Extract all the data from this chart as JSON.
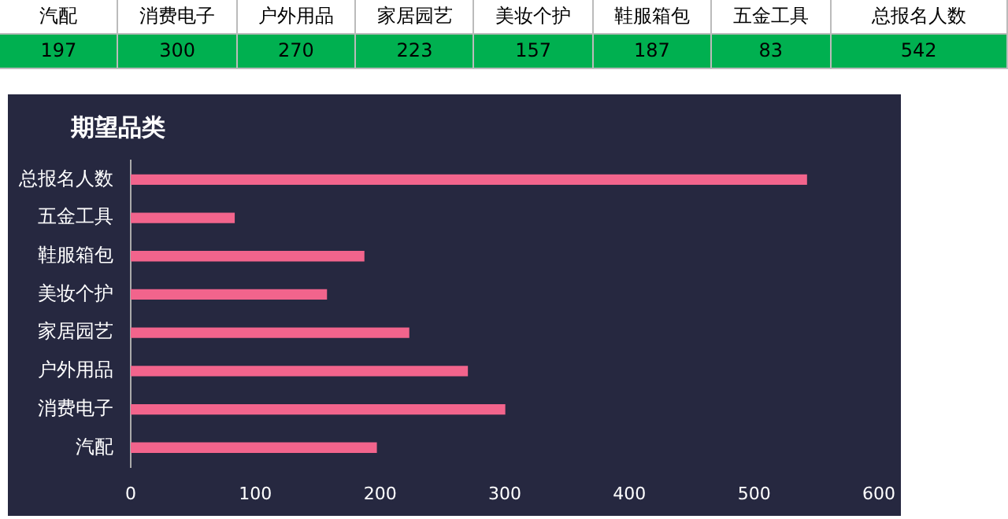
{
  "chart_data": [
    {
      "type": "other",
      "categories": [
        "汽配",
        "消费电子",
        "户外用品",
        "家居园艺",
        "美妆个护",
        "鞋服箱包",
        "五金工具",
        "总报名人数"
      ],
      "values": [
        197,
        300,
        270,
        223,
        157,
        187,
        83,
        542
      ],
      "color": "#00b050",
      "data_labels": true
    },
    {
      "type": "bar",
      "title": "期望品类",
      "orientation": "horizontal",
      "categories": [
        "总报名人数",
        "五金工具",
        "鞋服箱包",
        "美妆个护",
        "家居园艺",
        "户外用品",
        "消费电子",
        "汽配"
      ],
      "values": [
        542,
        83,
        187,
        157,
        223,
        270,
        300,
        197
      ],
      "color": "#f2648c",
      "xlim": [
        0,
        600
      ],
      "xticks": [
        0,
        100,
        200,
        300,
        400,
        500,
        600
      ],
      "grid": false,
      "legend": false
    }
  ]
}
